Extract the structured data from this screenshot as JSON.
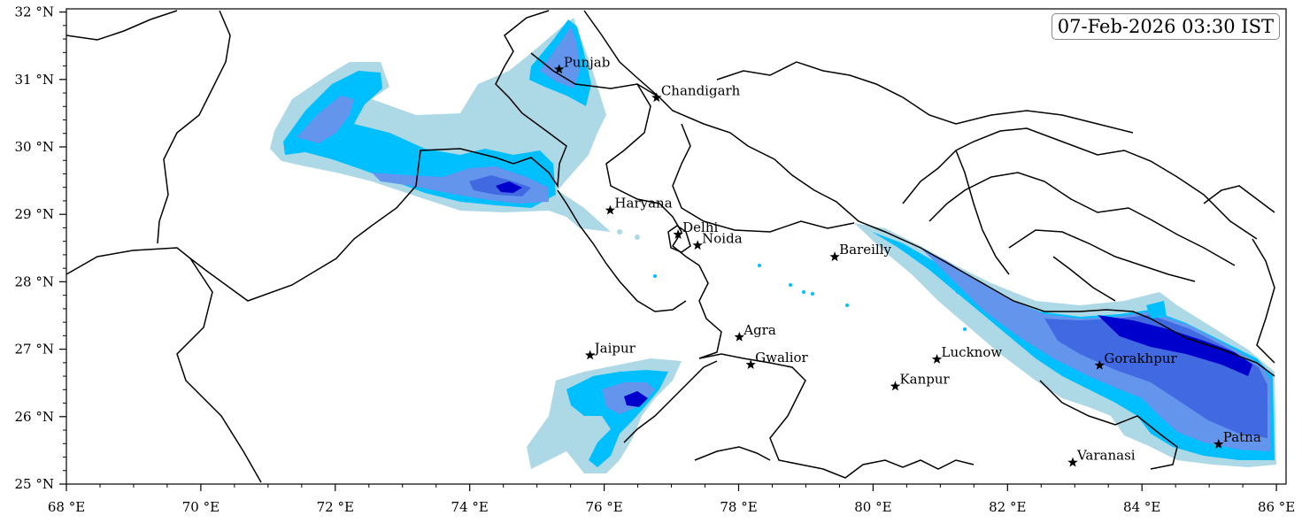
{
  "timestamp": "07-Feb-2026 03:30 IST",
  "axes": {
    "x_ticks": [
      "68 °E",
      "70 °E",
      "72 °E",
      "74 °E",
      "76 °E",
      "78 °E",
      "80 °E",
      "82 °E",
      "84 °E",
      "86 °E"
    ],
    "y_ticks": [
      "32 °N",
      "31 °N",
      "30 °N",
      "29 °N",
      "28 °N",
      "27 °N",
      "26 °N",
      "25 °N"
    ]
  },
  "cities": [
    {
      "name": "Punjab",
      "lon": 75.33,
      "lat": 31.15
    },
    {
      "name": "Chandigarh",
      "lon": 76.78,
      "lat": 30.73
    },
    {
      "name": "Haryana",
      "lon": 76.09,
      "lat": 29.06
    },
    {
      "name": "Delhi",
      "lon": 77.1,
      "lat": 28.7
    },
    {
      "name": "Noida",
      "lon": 77.39,
      "lat": 28.54
    },
    {
      "name": "Bareilly",
      "lon": 79.43,
      "lat": 28.37
    },
    {
      "name": "Agra",
      "lon": 78.01,
      "lat": 27.18
    },
    {
      "name": "Gwalior",
      "lon": 78.18,
      "lat": 26.77
    },
    {
      "name": "Jaipur",
      "lon": 75.79,
      "lat": 26.91
    },
    {
      "name": "Lucknow",
      "lon": 80.95,
      "lat": 26.85
    },
    {
      "name": "Kanpur",
      "lon": 80.33,
      "lat": 26.45
    },
    {
      "name": "Gorakhpur",
      "lon": 83.37,
      "lat": 26.76
    },
    {
      "name": "Patna",
      "lon": 85.14,
      "lat": 25.59
    },
    {
      "name": "Varanasi",
      "lon": 82.97,
      "lat": 25.32
    }
  ],
  "colors": {
    "level1": "#add8e6",
    "level2": "#00bfff",
    "level3": "#6495ed",
    "level4": "#4169e1",
    "level5": "#0000cd",
    "border": "#000000"
  }
}
